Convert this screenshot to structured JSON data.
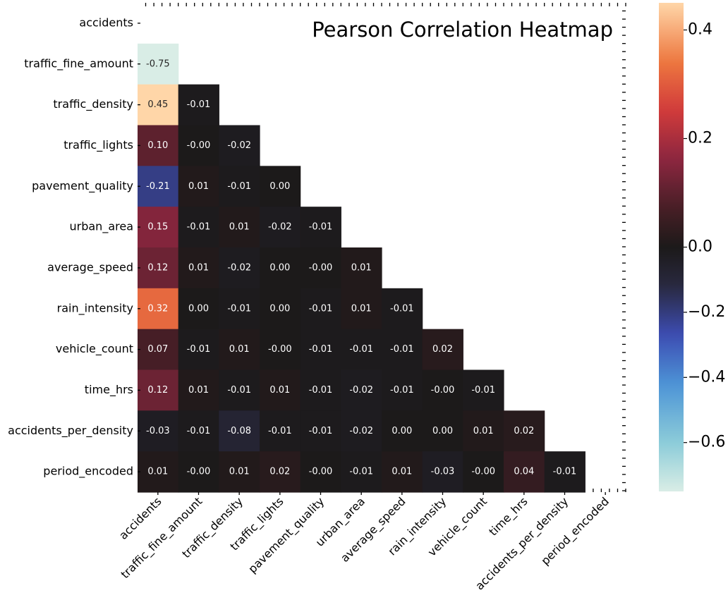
{
  "chart_data": {
    "type": "heatmap",
    "title": "Pearson Correlation Heatmap",
    "mask": "upper-triangle-including-diagonal",
    "labels": [
      "accidents",
      "traffic_fine_amount",
      "traffic_density",
      "traffic_lights",
      "pavement_quality",
      "urban_area",
      "average_speed",
      "rain_intensity",
      "vehicle_count",
      "time_hrs",
      "accidents_per_density",
      "period_encoded"
    ],
    "values": [
      [
        null,
        null,
        null,
        null,
        null,
        null,
        null,
        null,
        null,
        null,
        null,
        null
      ],
      [
        -0.75,
        null,
        null,
        null,
        null,
        null,
        null,
        null,
        null,
        null,
        null,
        null
      ],
      [
        0.45,
        -0.01,
        null,
        null,
        null,
        null,
        null,
        null,
        null,
        null,
        null,
        null
      ],
      [
        0.1,
        -0.0,
        -0.02,
        null,
        null,
        null,
        null,
        null,
        null,
        null,
        null,
        null
      ],
      [
        -0.21,
        0.01,
        -0.01,
        0.0,
        null,
        null,
        null,
        null,
        null,
        null,
        null,
        null
      ],
      [
        0.15,
        -0.01,
        0.01,
        -0.02,
        -0.01,
        null,
        null,
        null,
        null,
        null,
        null,
        null
      ],
      [
        0.12,
        0.01,
        -0.02,
        0.0,
        -0.0,
        0.01,
        null,
        null,
        null,
        null,
        null,
        null
      ],
      [
        0.32,
        0.0,
        -0.01,
        0.0,
        -0.01,
        0.01,
        -0.01,
        null,
        null,
        null,
        null,
        null
      ],
      [
        0.07,
        -0.01,
        0.01,
        -0.0,
        -0.01,
        -0.01,
        -0.01,
        0.02,
        null,
        null,
        null,
        null
      ],
      [
        0.12,
        0.01,
        -0.01,
        0.01,
        -0.01,
        -0.02,
        -0.01,
        -0.0,
        -0.01,
        null,
        null,
        null
      ],
      [
        -0.03,
        -0.01,
        -0.08,
        -0.01,
        -0.01,
        -0.02,
        0.0,
        0.0,
        0.01,
        0.02,
        null,
        null
      ],
      [
        0.01,
        -0.0,
        0.01,
        0.02,
        -0.0,
        -0.01,
        0.01,
        -0.03,
        -0.0,
        0.04,
        -0.01,
        null
      ]
    ],
    "cell_labels": [
      [],
      [
        "-0.75"
      ],
      [
        "0.45",
        "-0.01"
      ],
      [
        "0.10",
        "-0.00",
        "-0.02"
      ],
      [
        "-0.21",
        "0.01",
        "-0.01",
        "0.00"
      ],
      [
        "0.15",
        "-0.01",
        "0.01",
        "-0.02",
        "-0.01"
      ],
      [
        "0.12",
        "0.01",
        "-0.02",
        "0.00",
        "-0.00",
        "0.01"
      ],
      [
        "0.32",
        "0.00",
        "-0.01",
        "0.00",
        "-0.01",
        "0.01",
        "-0.01"
      ],
      [
        "0.07",
        "-0.01",
        "0.01",
        "-0.00",
        "-0.01",
        "-0.01",
        "-0.01",
        "0.02"
      ],
      [
        "0.12",
        "0.01",
        "-0.01",
        "0.01",
        "-0.01",
        "-0.02",
        "-0.01",
        "-0.00",
        "-0.01"
      ],
      [
        "-0.03",
        "-0.01",
        "-0.08",
        "-0.01",
        "-0.01",
        "-0.02",
        "0.00",
        "0.00",
        "0.01",
        "0.02"
      ],
      [
        "0.01",
        "-0.00",
        "0.01",
        "0.02",
        "-0.00",
        "-0.01",
        "0.01",
        "-0.03",
        "-0.00",
        "0.04",
        "-0.01"
      ]
    ],
    "colorbar": {
      "colormap": "icefire",
      "range": [
        -0.75,
        0.45
      ],
      "center": 0,
      "ticks": [
        0.4,
        0.2,
        0.0,
        -0.2,
        -0.4,
        -0.6
      ],
      "tick_labels": [
        "0.4",
        "0.2",
        "0.0",
        "−0.2",
        "−0.4",
        "−0.6"
      ]
    },
    "grid": false
  }
}
